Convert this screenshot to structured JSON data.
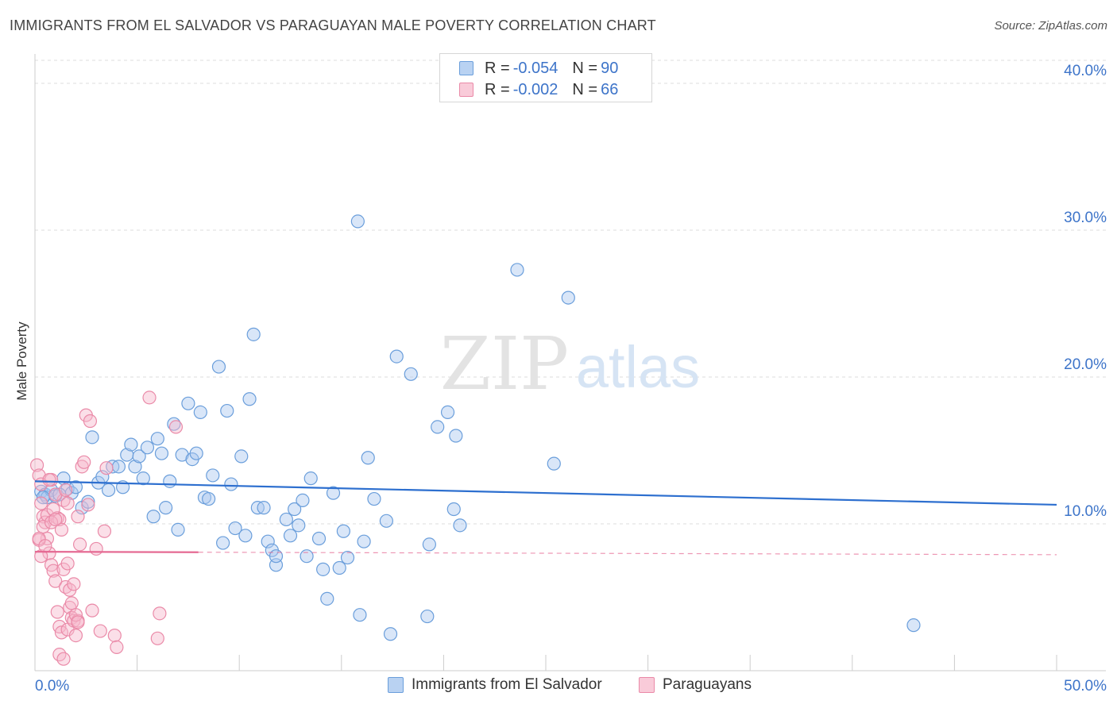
{
  "header": {
    "title": "IMMIGRANTS FROM EL SALVADOR VS PARAGUAYAN MALE POVERTY CORRELATION CHART",
    "source": "Source: ZipAtlas.com"
  },
  "watermark": {
    "zip": "ZIP",
    "atlas": "atlas"
  },
  "legend": {
    "rows": [
      {
        "r_label": "R =",
        "r_value": "-0.054",
        "n_label": "N =",
        "n_value": "90"
      },
      {
        "r_label": "R =",
        "r_value": "-0.002",
        "n_label": "N =",
        "n_value": "66"
      }
    ]
  },
  "colors": {
    "blue_fill": "#aac8ef",
    "blue_stroke": "#6a9edb",
    "blue_line": "#2d6fcf",
    "pink_fill": "#f6b8cc",
    "pink_stroke": "#ea8aa8",
    "pink_line": "#e56a93",
    "axis_text": "#3d74c9",
    "grid": "#dddddd"
  },
  "chart_data": {
    "type": "scatter",
    "title": "IMMIGRANTS FROM EL SALVADOR VS PARAGUAYAN MALE POVERTY CORRELATION CHART",
    "xlabel": "",
    "ylabel": "Male Poverty",
    "xlim": [
      0,
      50
    ],
    "ylim": [
      0,
      42
    ],
    "x_tick_labels": [
      "0.0%",
      "50.0%"
    ],
    "y_ticks": [
      10,
      20,
      30,
      40
    ],
    "y_tick_labels": [
      "10.0%",
      "20.0%",
      "30.0%",
      "40.0%"
    ],
    "grid": true,
    "legend_position": "top-center",
    "series": [
      {
        "name": "Immigrants from El Salvador",
        "color": "#6a9edb",
        "trend": {
          "x": [
            0,
            50
          ],
          "y": [
            12.9,
            11.3
          ],
          "style": "solid"
        },
        "points": [
          [
            0.3,
            12.2
          ],
          [
            0.5,
            12.0
          ],
          [
            0.6,
            11.8
          ],
          [
            0.8,
            12.3
          ],
          [
            1.0,
            11.9
          ],
          [
            1.4,
            13.1
          ],
          [
            1.6,
            12.4
          ],
          [
            1.8,
            12.1
          ],
          [
            2.0,
            12.5
          ],
          [
            2.3,
            11.1
          ],
          [
            2.6,
            11.5
          ],
          [
            2.8,
            15.9
          ],
          [
            3.1,
            12.8
          ],
          [
            3.3,
            13.2
          ],
          [
            3.6,
            12.3
          ],
          [
            3.8,
            13.9
          ],
          [
            4.1,
            13.9
          ],
          [
            4.3,
            12.5
          ],
          [
            4.5,
            14.7
          ],
          [
            4.7,
            15.4
          ],
          [
            4.9,
            13.9
          ],
          [
            5.1,
            14.6
          ],
          [
            5.3,
            13.1
          ],
          [
            5.5,
            15.2
          ],
          [
            5.8,
            10.5
          ],
          [
            6.0,
            15.8
          ],
          [
            6.2,
            14.8
          ],
          [
            6.4,
            11.1
          ],
          [
            6.6,
            12.9
          ],
          [
            6.8,
            16.8
          ],
          [
            7.0,
            9.6
          ],
          [
            7.2,
            14.7
          ],
          [
            7.5,
            18.2
          ],
          [
            7.7,
            14.4
          ],
          [
            7.9,
            14.8
          ],
          [
            8.1,
            17.6
          ],
          [
            8.3,
            11.8
          ],
          [
            8.5,
            11.7
          ],
          [
            8.7,
            13.3
          ],
          [
            9.0,
            20.7
          ],
          [
            9.2,
            8.7
          ],
          [
            9.4,
            17.7
          ],
          [
            9.6,
            12.7
          ],
          [
            9.8,
            9.7
          ],
          [
            10.1,
            14.6
          ],
          [
            10.3,
            9.2
          ],
          [
            10.5,
            18.5
          ],
          [
            10.7,
            22.9
          ],
          [
            10.9,
            11.1
          ],
          [
            11.2,
            11.1
          ],
          [
            11.4,
            8.8
          ],
          [
            11.6,
            8.2
          ],
          [
            11.8,
            7.2
          ],
          [
            11.8,
            7.8
          ],
          [
            12.3,
            10.3
          ],
          [
            12.5,
            9.2
          ],
          [
            12.7,
            11.0
          ],
          [
            12.9,
            9.9
          ],
          [
            13.1,
            11.6
          ],
          [
            13.3,
            7.8
          ],
          [
            13.5,
            13.1
          ],
          [
            13.9,
            9.0
          ],
          [
            14.1,
            6.9
          ],
          [
            14.3,
            4.9
          ],
          [
            14.6,
            12.1
          ],
          [
            14.9,
            7.0
          ],
          [
            15.1,
            9.5
          ],
          [
            15.3,
            7.7
          ],
          [
            15.8,
            30.6
          ],
          [
            15.9,
            3.8
          ],
          [
            16.1,
            8.8
          ],
          [
            16.3,
            14.5
          ],
          [
            16.6,
            11.7
          ],
          [
            17.2,
            10.2
          ],
          [
            17.4,
            2.5
          ],
          [
            17.7,
            21.4
          ],
          [
            18.4,
            20.2
          ],
          [
            19.2,
            3.7
          ],
          [
            19.3,
            8.6
          ],
          [
            19.7,
            16.6
          ],
          [
            20.2,
            17.6
          ],
          [
            20.5,
            11.0
          ],
          [
            20.6,
            16.0
          ],
          [
            20.8,
            9.9
          ],
          [
            23.6,
            27.3
          ],
          [
            25.4,
            14.1
          ],
          [
            26.1,
            25.4
          ],
          [
            43.0,
            3.1
          ],
          [
            1.2,
            12.0
          ],
          [
            0.4,
            11.8
          ]
        ]
      },
      {
        "name": "Paraguayans",
        "color": "#ea8aa8",
        "trend": {
          "x": [
            0,
            50
          ],
          "y": [
            8.1,
            7.9
          ],
          "style": "solid-then-dashed",
          "solid_until": 8.0
        },
        "points": [
          [
            0.1,
            14.0
          ],
          [
            0.2,
            13.3
          ],
          [
            0.3,
            12.7
          ],
          [
            0.3,
            11.4
          ],
          [
            0.4,
            10.5
          ],
          [
            0.5,
            10.1
          ],
          [
            0.6,
            9.0
          ],
          [
            0.7,
            8.0
          ],
          [
            0.8,
            7.2
          ],
          [
            0.9,
            6.8
          ],
          [
            1.0,
            6.1
          ],
          [
            1.1,
            10.4
          ],
          [
            1.1,
            4.0
          ],
          [
            1.2,
            3.0
          ],
          [
            1.3,
            2.6
          ],
          [
            1.4,
            11.6
          ],
          [
            1.5,
            5.7
          ],
          [
            1.6,
            2.8
          ],
          [
            1.6,
            11.4
          ],
          [
            1.7,
            4.3
          ],
          [
            1.8,
            3.6
          ],
          [
            1.9,
            3.4
          ],
          [
            2.0,
            2.4
          ],
          [
            2.1,
            3.4
          ],
          [
            2.1,
            10.5
          ],
          [
            2.2,
            8.6
          ],
          [
            2.3,
            13.9
          ],
          [
            2.4,
            14.2
          ],
          [
            2.5,
            17.4
          ],
          [
            2.6,
            11.3
          ],
          [
            2.8,
            4.1
          ],
          [
            3.0,
            8.3
          ],
          [
            3.2,
            2.7
          ],
          [
            3.4,
            9.5
          ],
          [
            3.5,
            13.8
          ],
          [
            3.9,
            2.4
          ],
          [
            4.0,
            1.6
          ],
          [
            5.6,
            18.6
          ],
          [
            6.0,
            2.2
          ],
          [
            6.1,
            3.9
          ],
          [
            6.9,
            16.6
          ],
          [
            0.2,
            8.9
          ],
          [
            0.4,
            9.8
          ],
          [
            0.6,
            10.6
          ],
          [
            0.8,
            13.0
          ],
          [
            0.9,
            11.0
          ],
          [
            1.0,
            12.0
          ],
          [
            1.2,
            10.3
          ],
          [
            1.3,
            9.6
          ],
          [
            1.4,
            6.9
          ],
          [
            1.5,
            12.3
          ],
          [
            1.6,
            7.3
          ],
          [
            1.7,
            5.5
          ],
          [
            1.8,
            4.6
          ],
          [
            1.9,
            5.9
          ],
          [
            2.0,
            3.8
          ],
          [
            0.2,
            9.0
          ],
          [
            0.3,
            7.8
          ],
          [
            0.5,
            8.5
          ],
          [
            0.7,
            13.0
          ],
          [
            0.8,
            10.1
          ],
          [
            1.0,
            10.3
          ],
          [
            1.2,
            1.1
          ],
          [
            1.4,
            0.8
          ],
          [
            2.1,
            3.3
          ],
          [
            2.7,
            17.0
          ]
        ]
      }
    ]
  },
  "bottom_legend": {
    "items": [
      {
        "label": "Immigrants from El Salvador"
      },
      {
        "label": "Paraguayans"
      }
    ]
  }
}
